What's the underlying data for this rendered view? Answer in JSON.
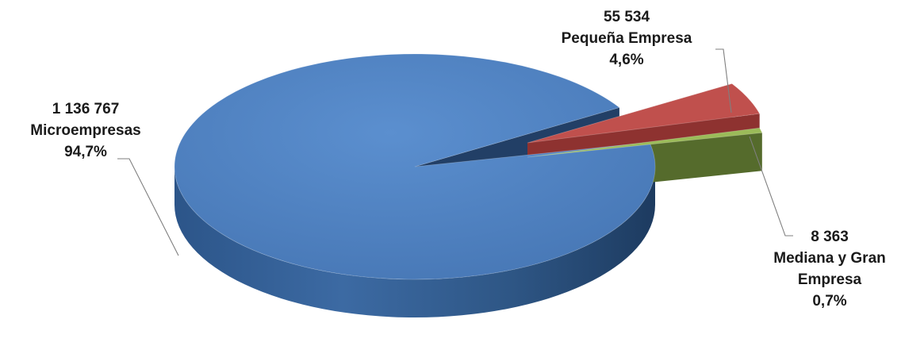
{
  "chart_data": {
    "type": "pie",
    "style": "3d-exploded",
    "series": [
      {
        "category": "Microempresas",
        "value": 1136767,
        "value_label": "1 136 767",
        "percent_label": "94,7%",
        "color": "#4f81bd"
      },
      {
        "category": "Pequeña Empresa",
        "value": 55534,
        "value_label": "55 534",
        "percent_label": "4,6%",
        "color": "#c0504d"
      },
      {
        "category": "Mediana y Gran Empresa",
        "category_lines": [
          "Mediana y Gran",
          "Empresa"
        ],
        "value": 8363,
        "value_label": "8 363",
        "percent_label": "0,7%",
        "color": "#9bbb59"
      }
    ]
  }
}
